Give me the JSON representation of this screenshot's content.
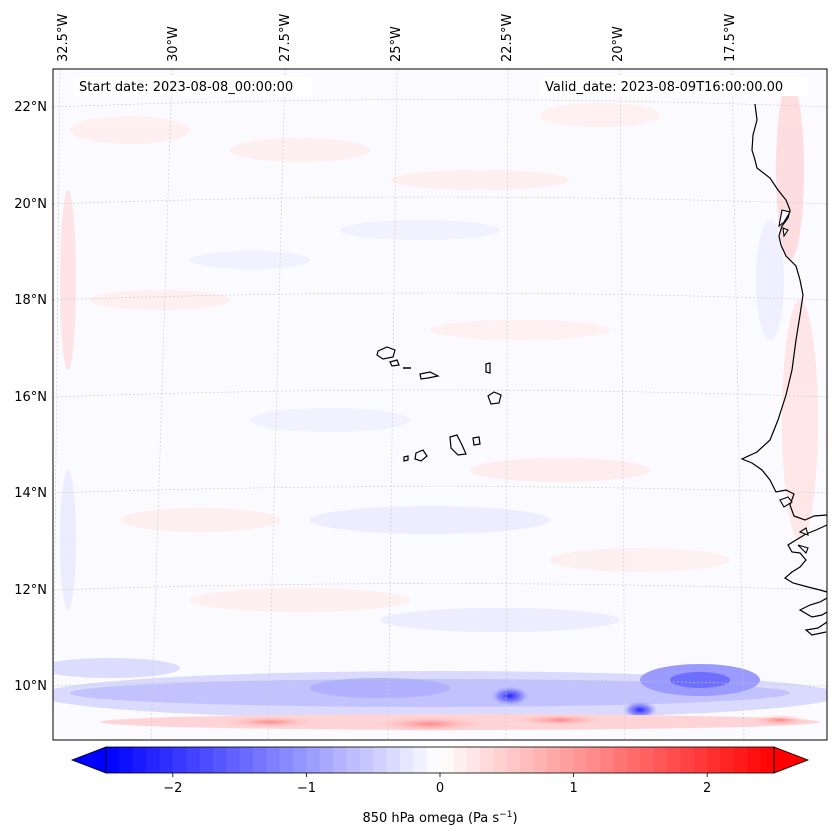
{
  "map": {
    "start_date_text": "Start date: 2023-08-08_00:00:00",
    "valid_date_text": "Valid_date: 2023-08-09T16:00:00.00",
    "lon_labels": [
      "32.5°W",
      "30°W",
      "27.5°W",
      "25°W",
      "22.5°W",
      "20°W",
      "17.5°W"
    ],
    "lat_labels": [
      "22°N",
      "20°N",
      "18°N",
      "16°N",
      "14°N",
      "12°N",
      "10°N"
    ],
    "gridlines": true,
    "coastline_color": "#000000",
    "background_field_color": "#fbfbff"
  },
  "colorbar": {
    "label_main": "850 hPa omega (Pa s",
    "label_sup": "−1",
    "label_close": ")",
    "tick_labels": [
      "−2",
      "−1",
      "0",
      "1",
      "2"
    ],
    "tick_values": [
      -2,
      -1,
      0,
      1,
      2
    ],
    "range": [
      -2.5,
      2.5
    ],
    "extend": "both",
    "cmap": [
      "#0000ff",
      "#ffffff",
      "#ff0000"
    ]
  }
}
